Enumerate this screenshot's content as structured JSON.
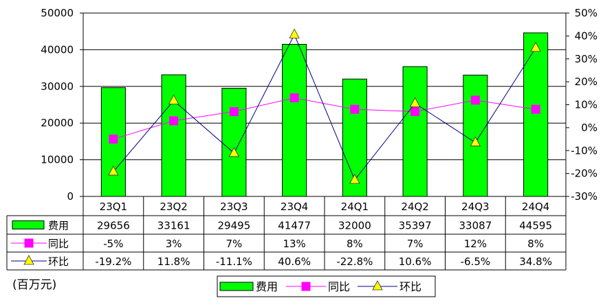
{
  "chart_data": {
    "type": "bar",
    "categories": [
      "23Q1",
      "23Q2",
      "23Q3",
      "23Q4",
      "24Q1",
      "24Q2",
      "24Q3",
      "24Q4"
    ],
    "series": [
      {
        "name": "费用",
        "kind": "bar",
        "axis": "left",
        "color": "#00ff00",
        "values": [
          29656,
          33161,
          29495,
          41477,
          32000,
          35397,
          33087,
          44595
        ],
        "labels": [
          "29656",
          "33161",
          "29495",
          "41477",
          "32000",
          "35397",
          "33087",
          "44595"
        ]
      },
      {
        "name": "同比",
        "kind": "line",
        "axis": "right",
        "color": "#ff00ff",
        "marker": "square",
        "values": [
          -5,
          3,
          7,
          13,
          8,
          7,
          12,
          8
        ],
        "labels": [
          "-5%",
          "3%",
          "7%",
          "13%",
          "8%",
          "7%",
          "12%",
          "8%"
        ]
      },
      {
        "name": "环比",
        "kind": "line",
        "axis": "right",
        "color": "#000080",
        "marker": "triangle",
        "marker_color": "#ffff00",
        "values": [
          -19.2,
          11.8,
          -11.1,
          40.6,
          -22.8,
          10.6,
          -6.5,
          34.8
        ],
        "labels": [
          "-19.2%",
          "11.8%",
          "-11.1%",
          "40.6%",
          "-22.8%",
          "10.6%",
          "-6.5%",
          "34.8%"
        ]
      }
    ],
    "left_axis": {
      "min": 0,
      "max": 50000,
      "step": 10000,
      "ticks": [
        "0",
        "10000",
        "20000",
        "30000",
        "40000",
        "50000"
      ]
    },
    "right_axis": {
      "min": -30,
      "max": 50,
      "step": 10,
      "ticks": [
        "-30%",
        "-20%",
        "-10%",
        "0%",
        "10%",
        "20%",
        "30%",
        "40%",
        "50%"
      ]
    },
    "unit_label": "(百万元)",
    "grid": true,
    "legend_position": "bottom",
    "data_table": true
  }
}
